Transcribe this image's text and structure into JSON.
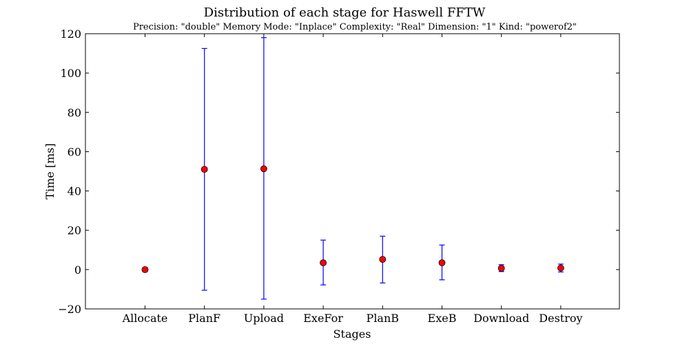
{
  "chart_data": {
    "type": "scatter",
    "title": "Distribution of each stage for Haswell FFTW",
    "subtitle": "Precision: \"double\" Memory Mode: \"Inplace\" Complexity: \"Real\" Dimension: \"1\" Kind: \"powerof2\"",
    "xlabel": "Stages",
    "ylabel": "Time [ms]",
    "ylim": [
      -20,
      120
    ],
    "yticks": [
      -20,
      0,
      20,
      40,
      60,
      80,
      100,
      120
    ],
    "ytick_labels": [
      "−20",
      "0",
      "20",
      "40",
      "60",
      "80",
      "100",
      "120"
    ],
    "categories": [
      "Allocate",
      "PlanF",
      "Upload",
      "ExeFor",
      "PlanB",
      "ExeB",
      "Download",
      "Destroy"
    ],
    "values": [
      0.0,
      51.0,
      51.3,
      3.5,
      5.2,
      3.5,
      0.7,
      0.8
    ],
    "error_low": [
      0.0,
      -10.5,
      -15.0,
      -7.8,
      -6.8,
      -5.2,
      -1.0,
      -1.2
    ],
    "error_high": [
      0.0,
      112.5,
      118.0,
      15.0,
      17.0,
      12.5,
      2.5,
      2.8
    ],
    "grid": false,
    "colors": {
      "marker": "#ff0000",
      "errorbar": "#0000ff",
      "axes": "#000000"
    }
  }
}
